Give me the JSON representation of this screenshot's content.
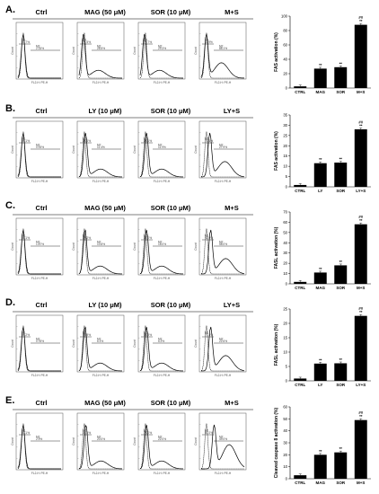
{
  "rows": [
    {
      "label": "A.",
      "titles": [
        "Ctrl",
        "MAG (50 μM)",
        "SOR (10 μM)",
        "M+S"
      ],
      "gate_labels": [
        {
          "m1": "M1",
          "v1": "97.7%",
          "m2": "M2",
          "v2": "2.33%"
        },
        {
          "m1": "M1",
          "v1": "71.5%",
          "m2": "M2",
          "v2": "28.5%"
        },
        {
          "m1": "M1",
          "v1": "70.7%",
          "m2": "M2",
          "v2": "29.3%"
        },
        {
          "m1": "M1",
          "v1": "11.9%",
          "m2": "M2",
          "v2": "88.1%"
        }
      ],
      "chart_data": {
        "type": "bar",
        "categories": [
          "CTRL",
          "MAG",
          "SOR",
          "M+S"
        ],
        "values": [
          2.3,
          27,
          29,
          88
        ],
        "ylabel": "FAS activation (%)",
        "ylim": [
          0,
          100
        ],
        "yticks": [
          0,
          20,
          40,
          60,
          80,
          100
        ],
        "annotations": [
          "",
          "**",
          "**",
          "##\n**"
        ]
      }
    },
    {
      "label": "B.",
      "titles": [
        "Ctrl",
        "LY (10 μM)",
        "SOR (10 μM)",
        "LY+S"
      ],
      "gate_labels": [
        {
          "m1": "M1",
          "v1": "99.1%",
          "m2": "M2",
          "v2": "0.93%"
        },
        {
          "m1": "M1",
          "v1": "88.6%",
          "m2": "M2",
          "v2": "11.4%"
        },
        {
          "m1": "M1",
          "v1": "88.1%",
          "m2": "M2",
          "v2": "11.9%"
        },
        {
          "m1": "M1",
          "v1": "72.1%",
          "m2": "M2",
          "v2": "27.9%"
        }
      ],
      "chart_data": {
        "type": "bar",
        "categories": [
          "CTRL",
          "LY",
          "SOR",
          "LY+S"
        ],
        "values": [
          0.9,
          11.5,
          11.8,
          28
        ],
        "ylabel": "FAS activation (%)",
        "ylim": [
          0,
          35
        ],
        "yticks": [
          0,
          5,
          10,
          15,
          20,
          25,
          30,
          35
        ],
        "annotations": [
          "",
          "**",
          "**",
          "##\n**"
        ]
      }
    },
    {
      "label": "C.",
      "titles": [
        "Ctrl",
        "MAG (50 μM)",
        "SOR (10 μM)",
        "M+S"
      ],
      "gate_labels": [
        {
          "m1": "M1",
          "v1": "98.1%",
          "m2": "M2",
          "v2": "1.87%"
        },
        {
          "m1": "M1",
          "v1": "89.2%",
          "m2": "M2",
          "v2": "10.8%"
        },
        {
          "m1": "M1",
          "v1": "82.0%",
          "m2": "M2",
          "v2": "18.0%"
        },
        {
          "m1": "M1",
          "v1": "42.0%",
          "m2": "M2",
          "v2": "58.0%"
        }
      ],
      "chart_data": {
        "type": "bar",
        "categories": [
          "CTRL",
          "MAG",
          "SOR",
          "M+S"
        ],
        "values": [
          1.9,
          11,
          18,
          58
        ],
        "ylabel": "FASL activation (%)",
        "ylim": [
          0,
          70
        ],
        "yticks": [
          0,
          10,
          20,
          30,
          40,
          50,
          60,
          70
        ],
        "annotations": [
          "",
          "**",
          "**",
          "##\n**"
        ]
      }
    },
    {
      "label": "D.",
      "titles": [
        "Ctrl",
        "LY (10 μM)",
        "SOR (10 μM)",
        "LY+S"
      ],
      "gate_labels": [
        {
          "m1": "M1",
          "v1": "99.2%",
          "m2": "M2",
          "v2": "0.78%"
        },
        {
          "m1": "M1",
          "v1": "93.9%",
          "m2": "M2",
          "v2": "6.1%"
        },
        {
          "m1": "M1",
          "v1": "93.8%",
          "m2": "M2",
          "v2": "6.2%"
        },
        {
          "m1": "M1",
          "v1": "77.4%",
          "m2": "M2",
          "v2": "22.6%"
        }
      ],
      "chart_data": {
        "type": "bar",
        "categories": [
          "CTRL",
          "LY",
          "SOR",
          "LY+S"
        ],
        "values": [
          0.8,
          6,
          6.1,
          22.6
        ],
        "ylabel": "FASL activation (%)",
        "ylim": [
          0,
          25
        ],
        "yticks": [
          0,
          5,
          10,
          15,
          20,
          25
        ],
        "annotations": [
          "",
          "**",
          "**",
          "##\n**"
        ]
      }
    },
    {
      "label": "E.",
      "titles": [
        "Ctrl",
        "MAG (50 μM)",
        "SOR (10 μM)",
        "M+S"
      ],
      "gate_labels": [
        {
          "m1": "M1",
          "v1": "97.1%",
          "m2": "M2",
          "v2": "2.9%"
        },
        {
          "m1": "M1",
          "v1": "80.0%",
          "m2": "M2",
          "v2": "20.0%"
        },
        {
          "m1": "M1",
          "v1": "78.0%",
          "m2": "M2",
          "v2": "22.0%"
        },
        {
          "m1": "M1",
          "v1": "51.0%",
          "m2": "M2",
          "v2": "49.0%"
        }
      ],
      "chart_data": {
        "type": "bar",
        "categories": [
          "CTRL",
          "MAG",
          "SOR",
          "M+S"
        ],
        "values": [
          2.9,
          20,
          22,
          49
        ],
        "ylabel": "Cleaved caspase 8 activation (%)",
        "ylim": [
          0,
          60
        ],
        "yticks": [
          0,
          10,
          20,
          30,
          40,
          50,
          60
        ],
        "annotations": [
          "",
          "**",
          "**",
          "##\n**"
        ]
      }
    }
  ],
  "flow_axes": {
    "xlabel": "FL2-H: PE-H",
    "ylabel": "Count"
  },
  "colors": {
    "bar": "#000000",
    "line": "#000000",
    "frame": "#555555"
  }
}
